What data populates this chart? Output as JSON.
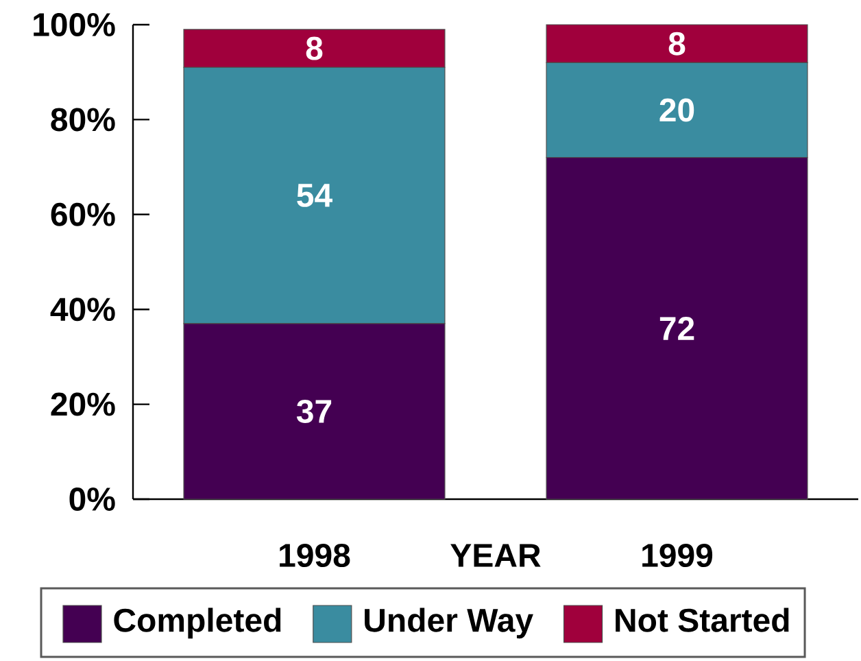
{
  "chart_data": {
    "type": "bar",
    "stacked": true,
    "categories": [
      "1998",
      "1999"
    ],
    "xlabel": "YEAR",
    "series": [
      {
        "name": "Completed",
        "color": "#440052",
        "values": [
          37,
          72
        ]
      },
      {
        "name": "Under Way",
        "color": "#3a8ca0",
        "values": [
          54,
          20
        ]
      },
      {
        "name": "Not Started",
        "color": "#a0003c",
        "values": [
          8,
          8
        ]
      }
    ],
    "ylim": [
      0,
      100
    ],
    "yticks": [
      {
        "value": 0,
        "label": "0%"
      },
      {
        "value": 20,
        "label": "20%"
      },
      {
        "value": 40,
        "label": "40%"
      },
      {
        "value": 60,
        "label": "60%"
      },
      {
        "value": 80,
        "label": "80%"
      },
      {
        "value": 100,
        "label": "100%"
      }
    ],
    "data_labels": true,
    "legend": "bottom"
  }
}
